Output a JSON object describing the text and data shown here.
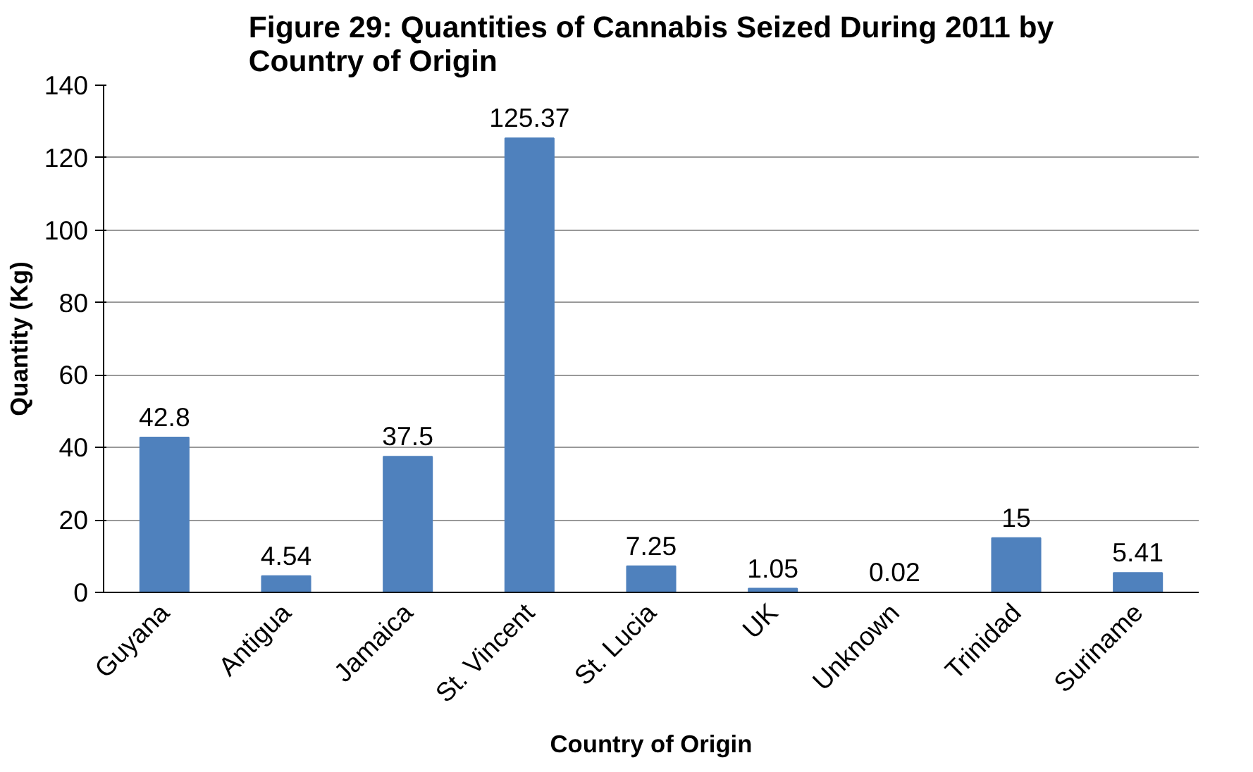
{
  "chart_data": {
    "type": "bar",
    "title": "Figure 29: Quantities of Cannabis Seized During 2011 by Country of Origin",
    "xlabel": "Country of Origin",
    "ylabel": "Quantity (Kg)",
    "categories": [
      "Guyana",
      "Antigua",
      "Jamaica",
      "St. Vincent",
      "St. Lucia",
      "UK",
      "Unknown",
      "Trinidad",
      "Suriname"
    ],
    "values": [
      42.8,
      4.54,
      37.5,
      125.37,
      7.25,
      1.05,
      0.02,
      15,
      5.41
    ],
    "color": "#4f81bd",
    "ylim": [
      0,
      140
    ],
    "yticks": [
      0,
      20,
      40,
      60,
      80,
      100,
      120,
      140
    ],
    "grid": "y",
    "data_labels": true
  }
}
